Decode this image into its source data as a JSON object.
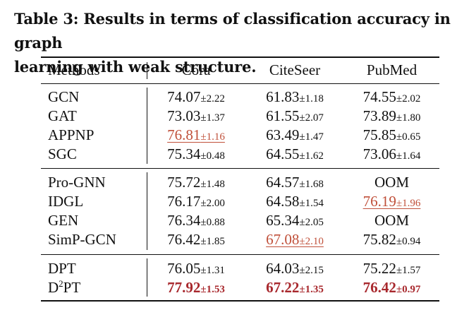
{
  "caption": {
    "line1": "Table 3: Results in terms of classification accuracy in graph",
    "line2": "learning with weak structure."
  },
  "header": {
    "methods": "Methods",
    "cora": "Cora",
    "citeseer": "CiteSeer",
    "pubmed": "PubMed"
  },
  "highlight_colors": {
    "second_best": "#c0503a",
    "best": "#a8282d"
  },
  "rows": [
    {
      "method": "GCN",
      "cora": {
        "mean": "74.07",
        "std": "±2.22"
      },
      "citeseer": {
        "mean": "61.83",
        "std": "±1.18"
      },
      "pubmed": {
        "mean": "74.55",
        "std": "±2.02"
      }
    },
    {
      "method": "GAT",
      "cora": {
        "mean": "73.03",
        "std": "±1.37"
      },
      "citeseer": {
        "mean": "61.55",
        "std": "±2.07"
      },
      "pubmed": {
        "mean": "73.89",
        "std": "±1.80"
      }
    },
    {
      "method": "APPNP",
      "cora": {
        "mean": "76.81",
        "std": "±1.16"
      },
      "citeseer": {
        "mean": "63.49",
        "std": "±1.47"
      },
      "pubmed": {
        "mean": "75.85",
        "std": "±0.65"
      }
    },
    {
      "method": "SGC",
      "cora": {
        "mean": "75.34",
        "std": "±0.48"
      },
      "citeseer": {
        "mean": "64.55",
        "std": "±1.62"
      },
      "pubmed": {
        "mean": "73.06",
        "std": "±1.64"
      }
    },
    {
      "method": "Pro-GNN",
      "cora": {
        "mean": "75.72",
        "std": "±1.48"
      },
      "citeseer": {
        "mean": "64.57",
        "std": "±1.68"
      },
      "pubmed": {
        "mean": "OOM",
        "std": ""
      }
    },
    {
      "method": "IDGL",
      "cora": {
        "mean": "76.17",
        "std": "±2.00"
      },
      "citeseer": {
        "mean": "64.58",
        "std": "±1.54"
      },
      "pubmed": {
        "mean": "76.19",
        "std": "±1.96"
      }
    },
    {
      "method": "GEN",
      "cora": {
        "mean": "76.34",
        "std": "±0.88"
      },
      "citeseer": {
        "mean": "65.34",
        "std": "±2.05"
      },
      "pubmed": {
        "mean": "OOM",
        "std": ""
      }
    },
    {
      "method": "SimP-GCN",
      "cora": {
        "mean": "76.42",
        "std": "±1.85"
      },
      "citeseer": {
        "mean": "67.08",
        "std": "±2.10"
      },
      "pubmed": {
        "mean": "75.82",
        "std": "±0.94"
      }
    },
    {
      "method": "DPT",
      "cora": {
        "mean": "76.05",
        "std": "±1.31"
      },
      "citeseer": {
        "mean": "64.03",
        "std": "±2.15"
      },
      "pubmed": {
        "mean": "75.22",
        "std": "±1.57"
      }
    },
    {
      "method_base": "D",
      "method_sup": "2",
      "method_rest": "PT",
      "cora": {
        "mean": "77.92",
        "std": "±1.53"
      },
      "citeseer": {
        "mean": "67.22",
        "std": "±1.35"
      },
      "pubmed": {
        "mean": "76.42",
        "std": "±0.97"
      }
    }
  ]
}
